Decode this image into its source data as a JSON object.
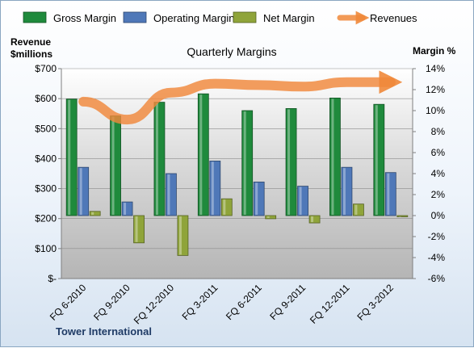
{
  "chart_data": {
    "type": "bar",
    "title": "Quarterly Margins",
    "left_axis_title_line1": "Revenue",
    "left_axis_title_line2": "$millions",
    "right_axis_title": "Margin %",
    "source": "Tower International",
    "categories": [
      "FQ 6-2010",
      "FQ 9-2010",
      "FQ 12-2010",
      "FQ 3-2011",
      "FQ 6-2011",
      "FQ 9-2011",
      "FQ 12-2011",
      "FQ 3-2012"
    ],
    "series": [
      {
        "name": "Gross Margin",
        "axis": "right",
        "kind": "bar",
        "color": "#1f8a3c",
        "values": [
          11.1,
          9.5,
          10.8,
          11.6,
          10.0,
          10.2,
          11.2,
          10.6
        ]
      },
      {
        "name": "Operating Margin",
        "axis": "right",
        "kind": "bar",
        "color": "#4f78b8",
        "values": [
          4.6,
          1.3,
          4.0,
          5.2,
          3.2,
          2.8,
          4.6,
          4.1
        ]
      },
      {
        "name": "Net Margin",
        "axis": "right",
        "kind": "bar",
        "color": "#8fa43a",
        "values": [
          0.4,
          -2.6,
          -3.8,
          1.6,
          -0.3,
          -0.7,
          1.1,
          0.0
        ]
      },
      {
        "name": "Revenues",
        "axis": "left",
        "kind": "line",
        "color": "#f0883a",
        "values": [
          590,
          530,
          620,
          650,
          645,
          640,
          655,
          655
        ]
      }
    ],
    "left_axis": {
      "min": 0,
      "max": 700,
      "step": 100,
      "labels": [
        "$-",
        "$100",
        "$200",
        "$300",
        "$400",
        "$500",
        "$600",
        "$700"
      ]
    },
    "right_axis": {
      "min": -6,
      "max": 14,
      "step": 2,
      "labels": [
        "-6%",
        "-4%",
        "-2%",
        "0%",
        "2%",
        "4%",
        "6%",
        "8%",
        "10%",
        "12%",
        "14%"
      ]
    },
    "legend_position": "top",
    "grid": true
  }
}
